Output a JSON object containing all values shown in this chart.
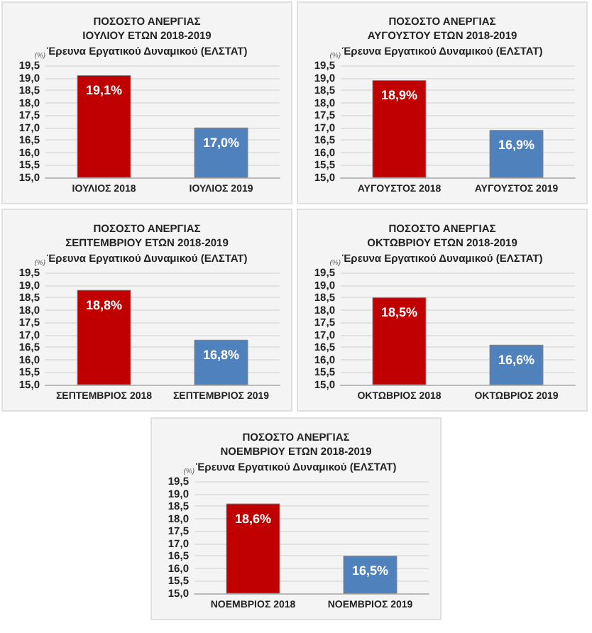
{
  "chart_data": [
    {
      "type": "bar",
      "title": "ΠΟΣΟΣΤΟ ΑΝΕΡΓΙΑΣ\nΙΟΥΛΙΟΥ ΕΤΩΝ 2018-2019",
      "subtitle": "Έρευνα Εργατικού Δυναμικού (ΕΛΣΤΑΤ)",
      "ylabel": "(%)",
      "categories": [
        "ΙΟΥΛΙΟΣ 2018",
        "ΙΟΥΛΙΟΣ 2019"
      ],
      "values": [
        19.1,
        17.0
      ],
      "value_labels": [
        "19,1%",
        "17,0%"
      ],
      "colors": [
        "#c00000",
        "#4f81bd"
      ],
      "ylim": [
        15,
        19.5
      ],
      "yticks": [
        {
          "value": 15,
          "label": "15,0"
        },
        {
          "value": 15.5,
          "label": "15,5"
        },
        {
          "value": 16,
          "label": "16,0"
        },
        {
          "value": 16.5,
          "label": "16,5"
        },
        {
          "value": 17,
          "label": "17,0"
        },
        {
          "value": 17.5,
          "label": "17,5"
        },
        {
          "value": 18,
          "label": "18,0"
        },
        {
          "value": 18.5,
          "label": "18,5"
        },
        {
          "value": 19,
          "label": "19,0"
        },
        {
          "value": 19.5,
          "label": "19,5"
        }
      ],
      "grid": "y"
    },
    {
      "type": "bar",
      "title": "ΠΟΣΟΣΤΟ ΑΝΕΡΓΙΑΣ\nΑΥΓΟΥΣΤΟΥ ΕΤΩΝ 2018-2019",
      "subtitle": "Έρευνα Εργατικού Δυναμικού (ΕΛΣΤΑΤ)",
      "ylabel": "(%)",
      "categories": [
        "ΑΥΓΟΥΣΤΟΣ 2018",
        "ΑΥΓΟΥΣΤΟΣ 2019"
      ],
      "values": [
        18.9,
        16.9
      ],
      "value_labels": [
        "18,9%",
        "16,9%"
      ],
      "colors": [
        "#c00000",
        "#4f81bd"
      ],
      "ylim": [
        15,
        19.5
      ],
      "yticks": [
        {
          "value": 15,
          "label": "15,0"
        },
        {
          "value": 15.5,
          "label": "15,5"
        },
        {
          "value": 16,
          "label": "16,0"
        },
        {
          "value": 16.5,
          "label": "16,5"
        },
        {
          "value": 17,
          "label": "17,0"
        },
        {
          "value": 17.5,
          "label": "17,5"
        },
        {
          "value": 18,
          "label": "18,0"
        },
        {
          "value": 18.5,
          "label": "18,5"
        },
        {
          "value": 19,
          "label": "19,0"
        },
        {
          "value": 19.5,
          "label": "19,5"
        }
      ],
      "grid": "y"
    },
    {
      "type": "bar",
      "title": "ΠΟΣΟΣΤΟ ΑΝΕΡΓΙΑΣ\nΣΕΠΤΕΜΒΡΙΟΥ ΕΤΩΝ 2018-2019",
      "subtitle": "Έρευνα Εργατικού Δυναμικού (ΕΛΣΤΑΤ)",
      "ylabel": "(%)",
      "categories": [
        "ΣΕΠΤΕΜΒΡΙΟΣ 2018",
        "ΣΕΠΤΕΜΒΡΙΟΣ 2019"
      ],
      "values": [
        18.8,
        16.8
      ],
      "value_labels": [
        "18,8%",
        "16,8%"
      ],
      "colors": [
        "#c00000",
        "#4f81bd"
      ],
      "ylim": [
        15,
        19.5
      ],
      "yticks": [
        {
          "value": 15,
          "label": "15,0"
        },
        {
          "value": 15.5,
          "label": "15,5"
        },
        {
          "value": 16,
          "label": "16,0"
        },
        {
          "value": 16.5,
          "label": "16,5"
        },
        {
          "value": 17,
          "label": "17,0"
        },
        {
          "value": 17.5,
          "label": "17,5"
        },
        {
          "value": 18,
          "label": "18,0"
        },
        {
          "value": 18.5,
          "label": "18,5"
        },
        {
          "value": 19,
          "label": "19,0"
        },
        {
          "value": 19.5,
          "label": "19,5"
        }
      ],
      "grid": "y"
    },
    {
      "type": "bar",
      "title": "ΠΟΣΟΣΤΟ ΑΝΕΡΓΙΑΣ\nΟΚΤΩΒΡΙΟΥ ΕΤΩΝ 2018-2019",
      "subtitle": "Έρευνα Εργατικού Δυναμικού (ΕΛΣΤΑΤ)",
      "ylabel": "(%)",
      "categories": [
        "ΟΚΤΩΒΡΙΟΣ 2018",
        "ΟΚΤΩΒΡΙΟΣ 2019"
      ],
      "values": [
        18.5,
        16.6
      ],
      "value_labels": [
        "18,5%",
        "16,6%"
      ],
      "colors": [
        "#c00000",
        "#4f81bd"
      ],
      "ylim": [
        15,
        19.5
      ],
      "yticks": [
        {
          "value": 15,
          "label": "15,0"
        },
        {
          "value": 15.5,
          "label": "15,5"
        },
        {
          "value": 16,
          "label": "16,0"
        },
        {
          "value": 16.5,
          "label": "16,5"
        },
        {
          "value": 17,
          "label": "17,0"
        },
        {
          "value": 17.5,
          "label": "17,5"
        },
        {
          "value": 18,
          "label": "18,0"
        },
        {
          "value": 18.5,
          "label": "18,5"
        },
        {
          "value": 19,
          "label": "19,0"
        },
        {
          "value": 19.5,
          "label": "19,5"
        }
      ],
      "grid": "y"
    },
    {
      "type": "bar",
      "title": "ΠΟΣΟΣΤΟ ΑΝΕΡΓΙΑΣ\nΝΟΕΜΒΡΙΟΥ ΕΤΩΝ 2018-2019",
      "subtitle": "Έρευνα Εργατικού Δυναμικού (ΕΛΣΤΑΤ)",
      "ylabel": "(%)",
      "categories": [
        "ΝΟΕΜΒΡΙΟΣ 2018",
        "ΝΟΕΜΒΡΙΟΣ 2019"
      ],
      "values": [
        18.6,
        16.5
      ],
      "value_labels": [
        "18,6%",
        "16,5%"
      ],
      "colors": [
        "#c00000",
        "#4f81bd"
      ],
      "ylim": [
        15,
        19.5
      ],
      "yticks": [
        {
          "value": 15,
          "label": "15,0"
        },
        {
          "value": 15.5,
          "label": "15,5"
        },
        {
          "value": 16,
          "label": "16,0"
        },
        {
          "value": 16.5,
          "label": "16,5"
        },
        {
          "value": 17,
          "label": "17,0"
        },
        {
          "value": 17.5,
          "label": "17,5"
        },
        {
          "value": 18,
          "label": "18,0"
        },
        {
          "value": 18.5,
          "label": "18,5"
        },
        {
          "value": 19,
          "label": "19,0"
        },
        {
          "value": 19.5,
          "label": "19,5"
        }
      ],
      "grid": "y"
    }
  ]
}
